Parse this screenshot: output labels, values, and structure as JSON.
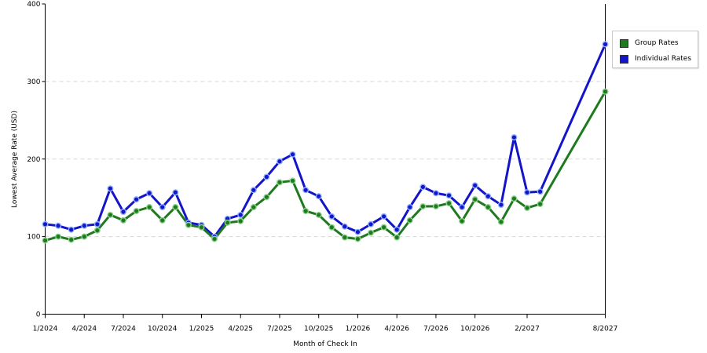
{
  "chart_data": {
    "type": "line",
    "title": "",
    "xlabel": "Month of Check In",
    "ylabel": "Lowest Average Rate (USD)",
    "ylim": [
      0,
      400
    ],
    "yticks": [
      0,
      100,
      200,
      300,
      400
    ],
    "grid": "horizontal dashed at 100, 200, 300",
    "legend_position": "right",
    "x": [
      "1/2024",
      "2/2024",
      "3/2024",
      "4/2024",
      "5/2024",
      "6/2024",
      "7/2024",
      "8/2024",
      "9/2024",
      "10/2024",
      "11/2024",
      "12/2024",
      "1/2025",
      "2/2025",
      "3/2025",
      "4/2025",
      "5/2025",
      "6/2025",
      "7/2025",
      "8/2025",
      "9/2025",
      "10/2025",
      "11/2025",
      "12/2025",
      "1/2026",
      "2/2026",
      "3/2026",
      "4/2026",
      "5/2026",
      "6/2026",
      "7/2026",
      "8/2026",
      "9/2026",
      "10/2026",
      "11/2026",
      "12/2026",
      "1/2027",
      "2/2027",
      "3/2027",
      "4/2027",
      "5/2027",
      "6/2027",
      "7/2027",
      "8/2027"
    ],
    "xtick_labels": [
      "1/2024",
      "4/2024",
      "7/2024",
      "10/2024",
      "1/2025",
      "4/2025",
      "7/2025",
      "10/2025",
      "1/2026",
      "4/2026",
      "7/2026",
      "10/2026",
      "2/2027",
      "8/2027"
    ],
    "series": [
      {
        "name": "Group Rates",
        "color": "#1f7a1f",
        "points": [
          [
            "1/2024",
            95
          ],
          [
            "2/2024",
            100
          ],
          [
            "3/2024",
            96
          ],
          [
            "4/2024",
            100
          ],
          [
            "5/2024",
            108
          ],
          [
            "6/2024",
            128
          ],
          [
            "7/2024",
            121
          ],
          [
            "8/2024",
            133
          ],
          [
            "9/2024",
            138
          ],
          [
            "10/2024",
            121
          ],
          [
            "11/2024",
            138
          ],
          [
            "12/2024",
            115
          ],
          [
            "1/2025",
            112
          ],
          [
            "2/2025",
            97
          ],
          [
            "3/2025",
            118
          ],
          [
            "4/2025",
            120
          ],
          [
            "5/2025",
            138
          ],
          [
            "6/2025",
            151
          ],
          [
            "7/2025",
            170
          ],
          [
            "8/2025",
            172
          ],
          [
            "9/2025",
            133
          ],
          [
            "10/2025",
            128
          ],
          [
            "11/2025",
            112
          ],
          [
            "12/2025",
            99
          ],
          [
            "1/2026",
            97
          ],
          [
            "2/2026",
            105
          ],
          [
            "3/2026",
            112
          ],
          [
            "4/2026",
            99
          ],
          [
            "5/2026",
            121
          ],
          [
            "6/2026",
            139
          ],
          [
            "7/2026",
            139
          ],
          [
            "8/2026",
            143
          ],
          [
            "9/2026",
            120
          ],
          [
            "10/2026",
            148
          ],
          [
            "11/2026",
            138
          ],
          [
            "12/2026",
            119
          ],
          [
            "1/2027",
            149
          ],
          [
            "2/2027",
            137
          ],
          [
            "3/2027",
            142
          ],
          [
            "8/2027",
            287
          ]
        ]
      },
      {
        "name": "Individual Rates",
        "color": "#1414c8",
        "points": [
          [
            "1/2024",
            116
          ],
          [
            "2/2024",
            114
          ],
          [
            "3/2024",
            109
          ],
          [
            "4/2024",
            114
          ],
          [
            "5/2024",
            116
          ],
          [
            "6/2024",
            162
          ],
          [
            "7/2024",
            132
          ],
          [
            "8/2024",
            148
          ],
          [
            "9/2024",
            156
          ],
          [
            "10/2024",
            138
          ],
          [
            "11/2024",
            157
          ],
          [
            "12/2024",
            118
          ],
          [
            "1/2025",
            115
          ],
          [
            "2/2025",
            100
          ],
          [
            "3/2025",
            123
          ],
          [
            "4/2025",
            128
          ],
          [
            "5/2025",
            160
          ],
          [
            "6/2025",
            177
          ],
          [
            "7/2025",
            197
          ],
          [
            "8/2025",
            206
          ],
          [
            "9/2025",
            160
          ],
          [
            "10/2025",
            152
          ],
          [
            "11/2025",
            126
          ],
          [
            "12/2025",
            113
          ],
          [
            "1/2026",
            106
          ],
          [
            "2/2026",
            116
          ],
          [
            "3/2026",
            126
          ],
          [
            "4/2026",
            109
          ],
          [
            "5/2026",
            138
          ],
          [
            "6/2026",
            164
          ],
          [
            "7/2026",
            156
          ],
          [
            "8/2026",
            153
          ],
          [
            "9/2026",
            138
          ],
          [
            "10/2026",
            166
          ],
          [
            "11/2026",
            152
          ],
          [
            "12/2026",
            141
          ],
          [
            "1/2027",
            228
          ],
          [
            "2/2027",
            157
          ],
          [
            "3/2027",
            158
          ],
          [
            "8/2027",
            348
          ]
        ]
      }
    ]
  }
}
